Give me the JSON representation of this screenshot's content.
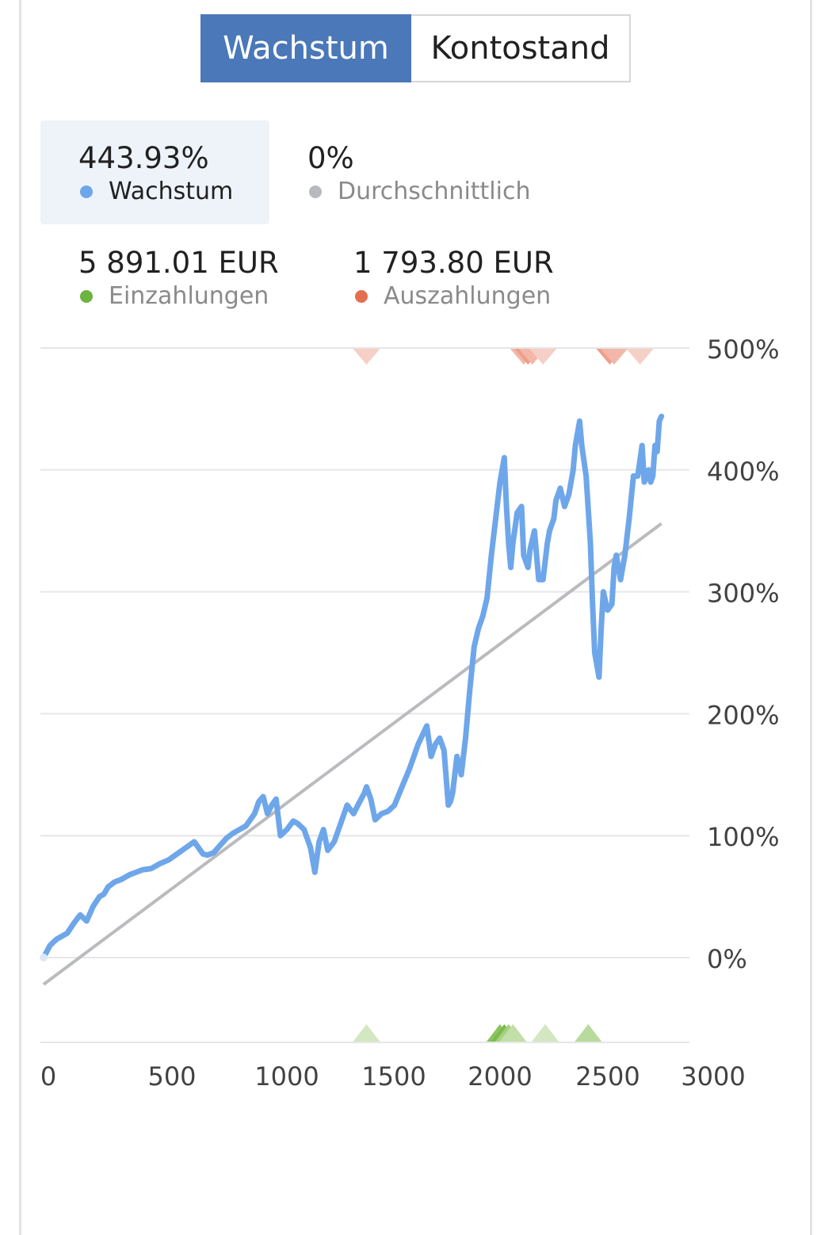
{
  "tabs": {
    "growth_label": "Wachstum",
    "balance_label": "Kontostand"
  },
  "stats": {
    "growth": {
      "value": "443.93%",
      "label": "Wachstum",
      "color": "#6ea6ea"
    },
    "average": {
      "value": "0%",
      "label": "Durchschnittlich",
      "color": "#b7b9bc"
    },
    "deposits": {
      "value": "5 891.01 EUR",
      "label": "Einzahlungen",
      "color": "#6cb33f"
    },
    "withdrawals": {
      "value": "1 793.80 EUR",
      "label": "Auszahlungen",
      "color": "#e2704e"
    }
  },
  "chart_data": {
    "type": "line",
    "xlim": [
      0,
      3000
    ],
    "ylim": [
      -70,
      500
    ],
    "x_ticks": [
      "0",
      "500",
      "1000",
      "1500",
      "2000",
      "2500",
      "3000"
    ],
    "y_ticks": [
      "500%",
      "400%",
      "300%",
      "200%",
      "100%",
      "0%"
    ],
    "y_tick_values": [
      500,
      400,
      300,
      200,
      100,
      0
    ],
    "x_tick_values": [
      0,
      500,
      1000,
      1500,
      2000,
      2500,
      3000
    ],
    "grid": true,
    "series": [
      {
        "color": "#6ea6ea",
        "x": [
          0,
          30,
          60,
          90,
          110,
          140,
          170,
          200,
          230,
          260,
          280,
          300,
          330,
          360,
          400,
          430,
          460,
          500,
          540,
          580,
          620,
          660,
          700,
          720,
          740,
          760,
          790,
          820,
          850,
          880,
          910,
          940,
          980,
          1000,
          1020,
          1040,
          1060,
          1080,
          1100,
          1130,
          1160,
          1180,
          1210,
          1240,
          1260,
          1280,
          1300,
          1320,
          1350,
          1380,
          1410,
          1440,
          1460,
          1490,
          1500,
          1520,
          1540,
          1570,
          1600,
          1630,
          1660,
          1700,
          1740,
          1780,
          1800,
          1820,
          1840,
          1860,
          1880,
          1890,
          1900,
          1920,
          1940,
          1960,
          1980,
          2000,
          2020,
          2040,
          2060,
          2080,
          2100,
          2120,
          2140,
          2150,
          2160,
          2170,
          2180,
          2200,
          2220,
          2230,
          2250,
          2260,
          2280,
          2300,
          2320,
          2340,
          2350,
          2370,
          2380,
          2400,
          2420,
          2440,
          2460,
          2470,
          2490,
          2500,
          2520,
          2540,
          2550,
          2560,
          2580,
          2590,
          2600,
          2620,
          2640,
          2650,
          2660,
          2680,
          2700,
          2720,
          2740,
          2760,
          2780,
          2790,
          2800,
          2810,
          2820,
          2830,
          2840,
          2850,
          2860,
          2870
        ],
        "y": [
          0,
          10,
          15,
          18,
          20,
          28,
          35,
          30,
          42,
          50,
          52,
          58,
          62,
          64,
          68,
          70,
          72,
          73,
          77,
          80,
          85,
          90,
          95,
          90,
          85,
          84,
          86,
          92,
          98,
          102,
          105,
          108,
          118,
          128,
          132,
          118,
          125,
          130,
          100,
          105,
          112,
          110,
          105,
          90,
          70,
          95,
          105,
          88,
          95,
          110,
          125,
          118,
          125,
          135,
          140,
          130,
          113,
          118,
          120,
          125,
          138,
          155,
          175,
          190,
          165,
          175,
          180,
          170,
          125,
          128,
          135,
          165,
          150,
          180,
          220,
          255,
          270,
          280,
          295,
          330,
          360,
          390,
          410,
          370,
          340,
          320,
          340,
          365,
          370,
          330,
          320,
          335,
          350,
          310,
          310,
          340,
          350,
          360,
          375,
          385,
          370,
          380,
          400,
          420,
          440,
          420,
          395,
          340,
          290,
          250,
          230,
          270,
          300,
          285,
          290,
          320,
          330,
          310,
          330,
          360,
          395,
          395,
          420,
          390,
          395,
          400,
          390,
          395,
          420,
          415,
          440,
          443.93
        ]
      },
      {
        "color": "#b9bbbe",
        "x": [
          0,
          2870
        ],
        "y": [
          -22,
          356
        ]
      }
    ],
    "markers": {
      "withdrawals": [
        {
          "x": 1500,
          "color": "#f6cfc6"
        },
        {
          "x": 2230,
          "color": "#f2b7a8"
        },
        {
          "x": 2250,
          "color": "#ee9e8a"
        },
        {
          "x": 2270,
          "color": "#f2b7a8"
        },
        {
          "x": 2320,
          "color": "#f6cfc6"
        },
        {
          "x": 2630,
          "color": "#ee9e8a"
        },
        {
          "x": 2650,
          "color": "#f2b7a8"
        },
        {
          "x": 2770,
          "color": "#f6cfc6"
        }
      ],
      "deposits": [
        {
          "x": 1500,
          "color": "#d3e7c3"
        },
        {
          "x": 2120,
          "color": "#8cc45f"
        },
        {
          "x": 2140,
          "color": "#7dbb4d"
        },
        {
          "x": 2160,
          "color": "#a4d07f"
        },
        {
          "x": 2180,
          "color": "#c1dfa8"
        },
        {
          "x": 2330,
          "color": "#d3e7c3"
        },
        {
          "x": 2530,
          "color": "#b8da9c"
        }
      ]
    }
  }
}
